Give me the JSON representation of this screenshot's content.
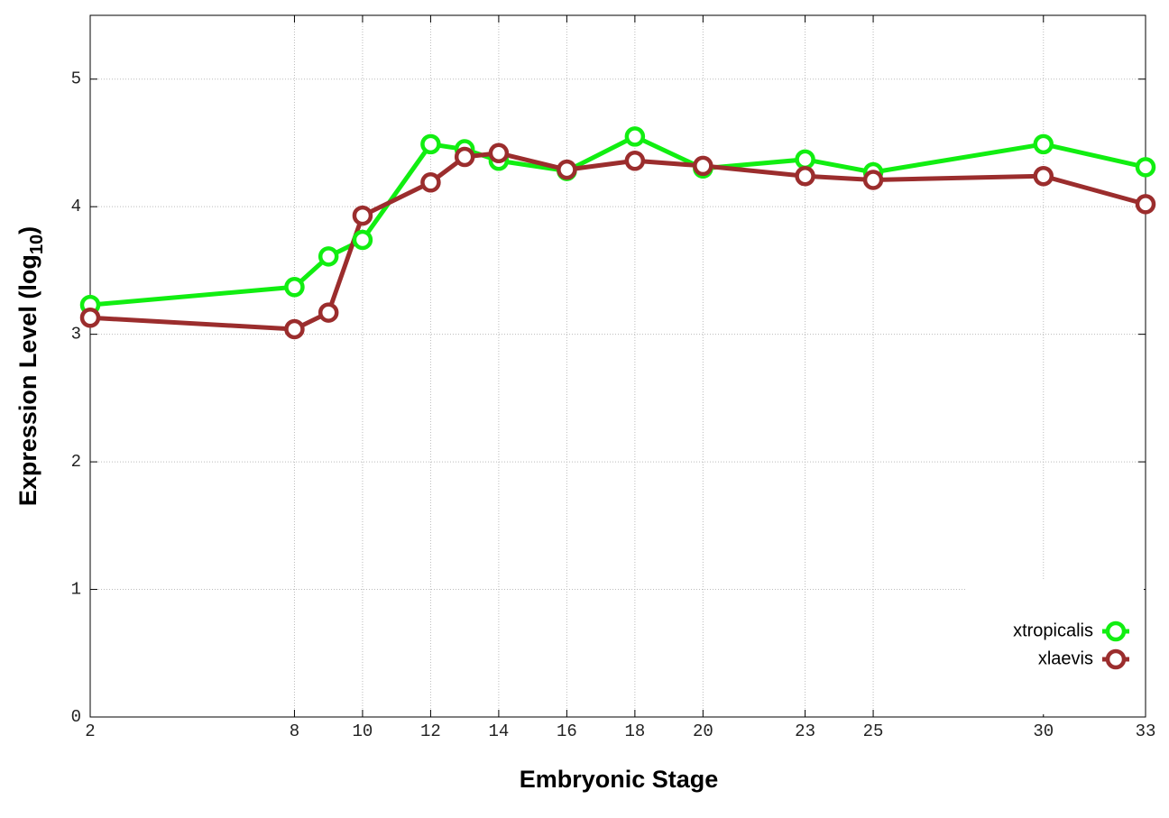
{
  "chart_data": {
    "type": "line",
    "x_label": "Embryonic Stage",
    "y_label": [
      "Expression Level (log",
      "10",
      ")"
    ],
    "x": [
      2,
      8,
      9,
      10,
      12,
      13,
      14,
      16,
      18,
      20,
      23,
      25,
      30,
      33
    ],
    "series": [
      {
        "name": "xtropicalis",
        "color": "#11ee11",
        "values": [
          3.23,
          3.37,
          3.61,
          3.74,
          4.49,
          4.45,
          4.36,
          4.28,
          4.55,
          4.3,
          4.37,
          4.27,
          4.49,
          4.31
        ]
      },
      {
        "name": "xlaevis",
        "color": "#9b2d2d",
        "values": [
          3.13,
          3.04,
          3.17,
          3.93,
          4.19,
          4.39,
          4.42,
          4.29,
          4.36,
          4.32,
          4.24,
          4.21,
          4.24,
          4.02
        ]
      }
    ],
    "xlim": [
      2,
      33
    ],
    "xticks": [
      2,
      8,
      10,
      12,
      14,
      16,
      18,
      20,
      23,
      25,
      30,
      33
    ],
    "ylim": [
      0,
      5.5
    ],
    "yticks": [
      0,
      1,
      2,
      3,
      4,
      5
    ],
    "grid": true,
    "legend": "lower right"
  }
}
